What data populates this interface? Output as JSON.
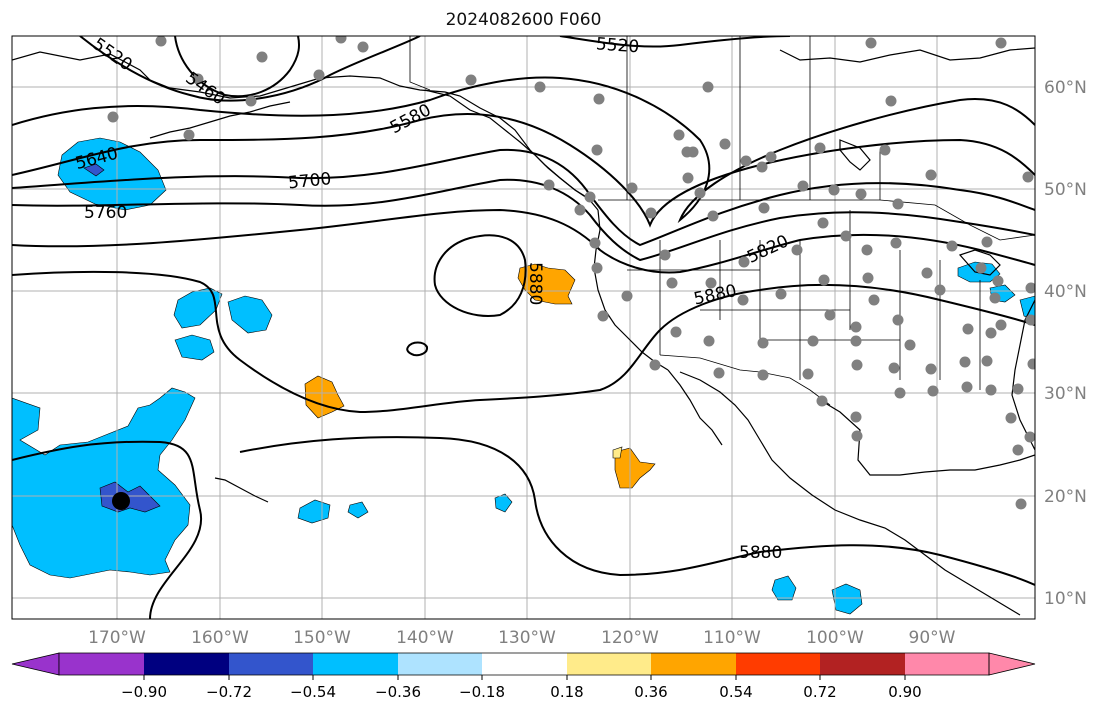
{
  "title": "2024082600 F060",
  "lon_labels": [
    "170°W",
    "160°W",
    "150°W",
    "140°W",
    "130°W",
    "120°W",
    "110°W",
    "100°W",
    "90°W"
  ],
  "lat_labels": [
    "60°N",
    "50°N",
    "40°N",
    "30°N",
    "20°N",
    "10°N"
  ],
  "contour_labels": [
    "5520",
    "5520",
    "5460",
    "5580",
    "5640",
    "5700",
    "5760",
    "5820",
    "5880",
    "5880",
    "5880"
  ],
  "colorbar": {
    "tick_labels": [
      "−0.90",
      "−0.72",
      "−0.54",
      "−0.36",
      "−0.18",
      "0.18",
      "0.36",
      "0.54",
      "0.72",
      "0.90"
    ],
    "colors": [
      "#9933cc",
      "#000080",
      "#3355cc",
      "#00bfff",
      "#aee3ff",
      "#ffffff",
      "#ffeb8a",
      "#ffa500",
      "#ff3c00",
      "#b22222",
      "#ff88aa"
    ]
  },
  "colors": {
    "station_dot": "#808080",
    "contour": "#000000",
    "neg_anomaly": "#00bfff",
    "neg_anomaly_strong": "#3355cc",
    "pos_anomaly": "#ffa500",
    "pos_anomaly_weak": "#ffeb8a"
  }
}
